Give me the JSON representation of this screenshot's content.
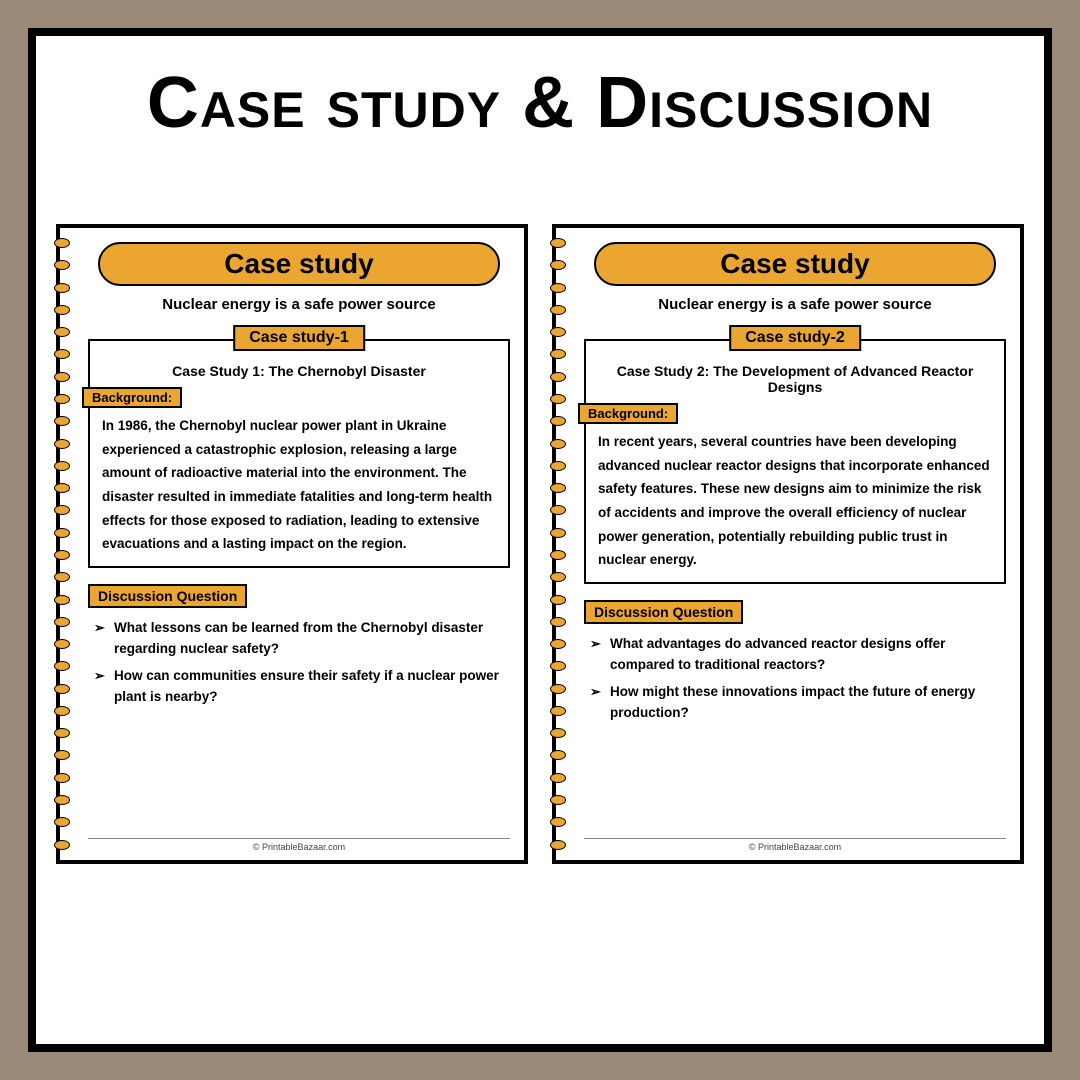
{
  "colors": {
    "page_bg": "#9c8a78",
    "frame_bg": "#ffffff",
    "frame_border": "#000000",
    "accent": "#eba531",
    "text": "#000000"
  },
  "main_title": "Case study & Discussion",
  "pages": [
    {
      "header": "Case study",
      "subtitle": "Nuclear energy is a safe power source",
      "case_label": "Case study-1",
      "case_title": "Case Study 1: The Chernobyl Disaster",
      "background_label": "Background:",
      "background_text": "In 1986, the Chernobyl nuclear power plant in Ukraine experienced a catastrophic explosion, releasing a large amount of radioactive material into the environment. The disaster resulted in immediate fatalities and long-term health effects for those exposed to radiation, leading to extensive evacuations and a lasting impact on the region.",
      "dq_label": "Discussion Question",
      "questions": [
        "What lessons can be learned from the Chernobyl disaster regarding nuclear safety?",
        "How can communities ensure their safety if a nuclear power plant is nearby?"
      ],
      "footer": "© PrintableBazaar.com"
    },
    {
      "header": "Case study",
      "subtitle": "Nuclear energy is a safe power source",
      "case_label": "Case study-2",
      "case_title": "Case Study 2: The Development of Advanced Reactor Designs",
      "background_label": "Background:",
      "background_text": "In recent years, several countries have been developing advanced nuclear reactor designs that incorporate enhanced safety features. These new designs aim to minimize the risk of accidents and improve the overall efficiency of nuclear power generation, potentially rebuilding public trust in nuclear energy.",
      "dq_label": "Discussion Question",
      "questions": [
        "What advantages do advanced reactor designs offer compared to traditional reactors?",
        "How might these innovations impact the future of energy production?"
      ],
      "footer": "© PrintableBazaar.com"
    }
  ]
}
